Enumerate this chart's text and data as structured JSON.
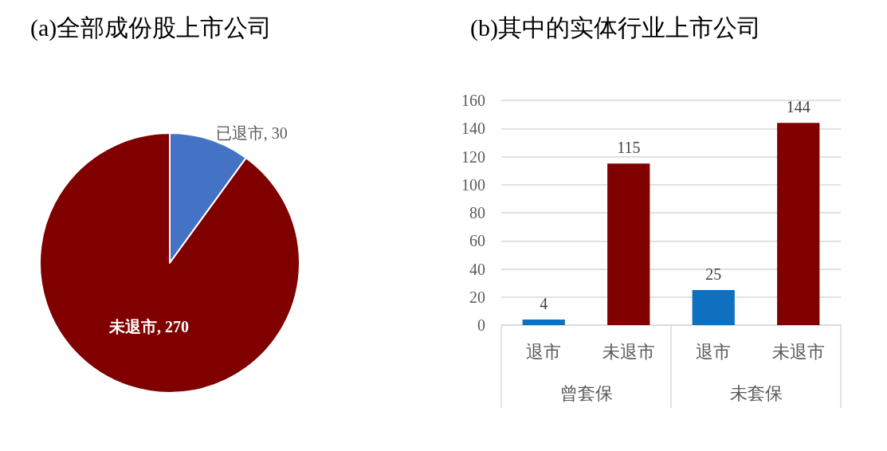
{
  "chart_data": [
    {
      "type": "pie",
      "title": "(a)全部成份股上市公司",
      "categories": [
        "已退市",
        "未退市"
      ],
      "values": [
        30,
        270
      ],
      "colors": [
        "#4472c4",
        "#800000"
      ],
      "value_labels": [
        ", 30",
        ", 270"
      ]
    },
    {
      "type": "bar",
      "title": "(b)其中的实体行业上市公司",
      "categories": [
        "退市",
        "未退市",
        "退市",
        "未退市"
      ],
      "values": [
        4,
        115,
        25,
        144
      ],
      "colors": [
        "#1070c0",
        "#800000",
        "#1070c0",
        "#800000"
      ],
      "ylim": [
        0,
        160
      ],
      "yticks": [
        0,
        20,
        40,
        60,
        80,
        100,
        120,
        140,
        160
      ],
      "grid": "y",
      "data_labels": true,
      "annotations": [
        "曾套保",
        "未套保"
      ]
    }
  ]
}
